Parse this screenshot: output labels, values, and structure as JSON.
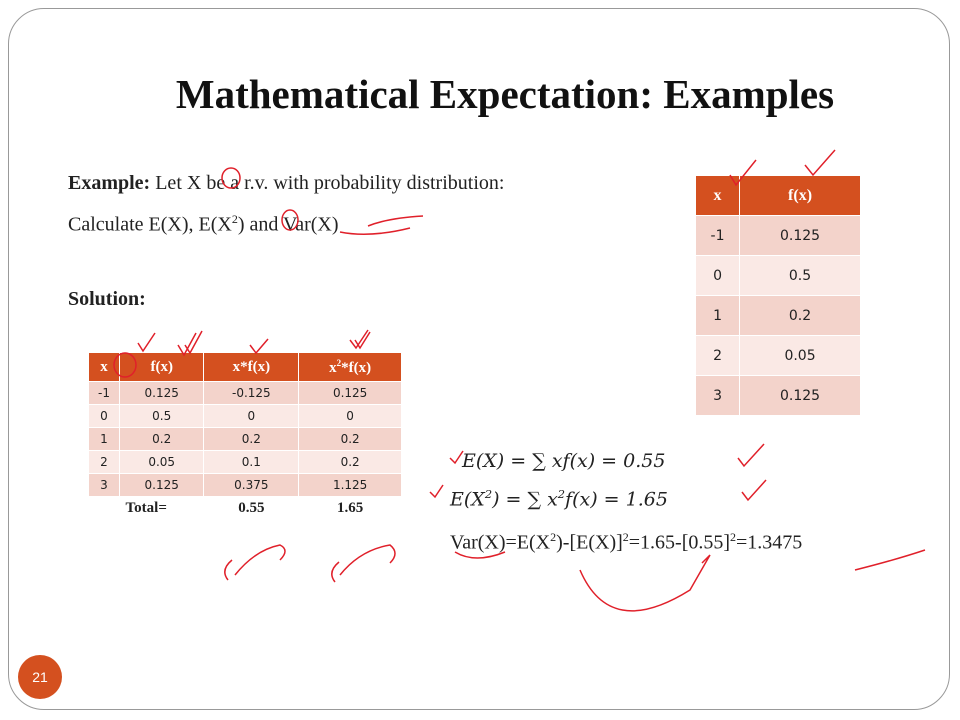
{
  "title": "Mathematical Expectation: Examples",
  "example": {
    "label": "Example:",
    "text": " Let X be a r.v. with probability distribution:"
  },
  "calculate": [
    "Calculate E(X), E(X",
    "2",
    ") and Var(X)"
  ],
  "solution": "Solution:",
  "dist_table": {
    "header": [
      "x",
      "f(x)"
    ],
    "rows": [
      [
        "-1",
        "0.125"
      ],
      [
        "0",
        "0.5"
      ],
      [
        "1",
        "0.2"
      ],
      [
        "2",
        "0.05"
      ],
      [
        "3",
        "0.125"
      ]
    ]
  },
  "calc_table": {
    "header": [
      [
        "x"
      ],
      [
        "f(x)"
      ],
      [
        "x*f(x)"
      ],
      [
        "x",
        "2",
        "*f(x)"
      ]
    ],
    "rows": [
      [
        "-1",
        "0.125",
        "-0.125",
        "0.125"
      ],
      [
        "0",
        "0.5",
        "0",
        "0"
      ],
      [
        "1",
        "0.2",
        "0.2",
        "0.2"
      ],
      [
        "2",
        "0.05",
        "0.1",
        "0.2"
      ],
      [
        "3",
        "0.125",
        "0.375",
        "1.125"
      ]
    ],
    "total": [
      "Total=",
      "0.55",
      "1.65"
    ]
  },
  "formulas": [
    [
      "E(X) = ∑ xf(x) = 0.55"
    ],
    [
      "E(X",
      "2",
      ") = ∑ x",
      "2",
      "f(x) = 1.65"
    ],
    [
      "Var(X)=E(X",
      "2",
      ")-[E(X)]",
      "2",
      "=1.65-[0.55]",
      "2",
      "=1.3475"
    ]
  ],
  "page_number": "21"
}
